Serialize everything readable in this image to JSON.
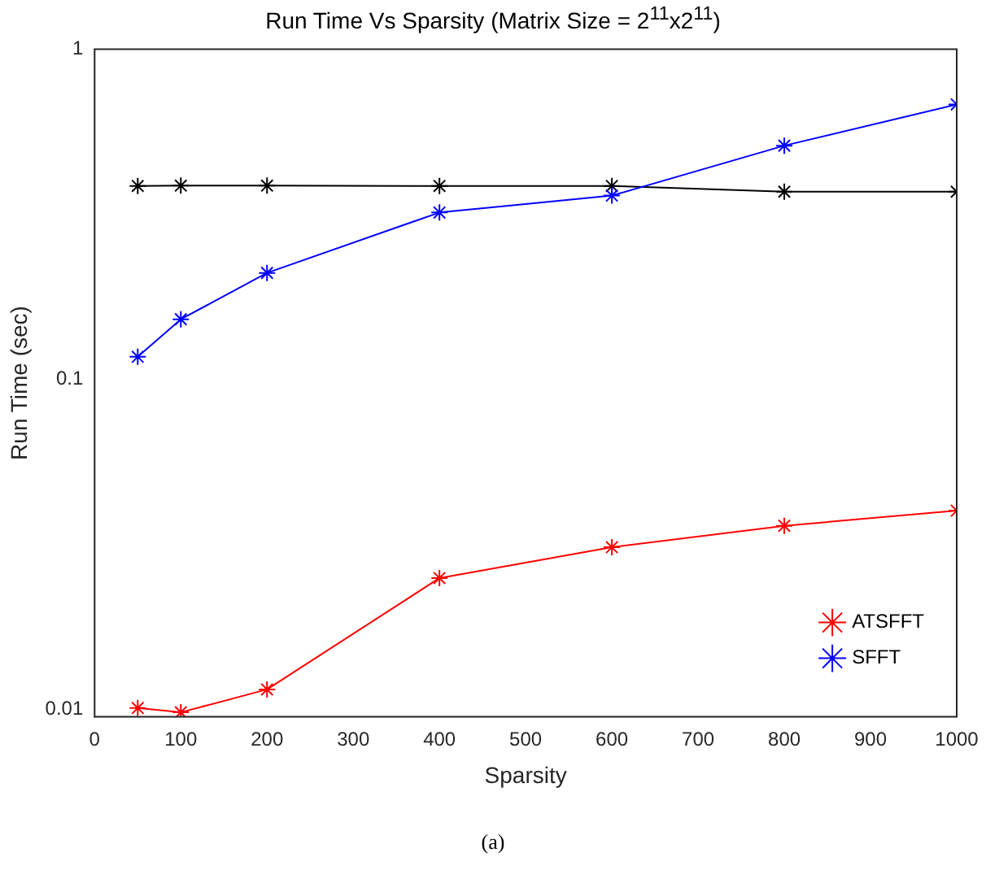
{
  "chart_data": {
    "type": "line",
    "title": "Run Time Vs Sparsity (Matrix Size = 2$^{11}$x2$^{11}$)",
    "xlabel": "Sparsity",
    "ylabel": "Run Time (sec)",
    "x": [
      50,
      100,
      200,
      400,
      600,
      800,
      1000
    ],
    "series": [
      {
        "name": "ATSFFT",
        "color": "#ff0000",
        "values": [
          0.0101,
          0.0098,
          0.0115,
          0.025,
          0.031,
          0.036,
          0.04
        ]
      },
      {
        "name": "SFFT",
        "color": "#0000ff",
        "values": [
          0.117,
          0.152,
          0.21,
          0.32,
          0.36,
          0.51,
          0.68
        ]
      },
      {
        "color": "#000000",
        "values": [
          0.385,
          0.386,
          0.386,
          0.385,
          0.385,
          0.37,
          0.37
        ]
      }
    ],
    "xlim": [
      0,
      1000
    ],
    "xticks": [
      0,
      100,
      200,
      300,
      400,
      500,
      600,
      700,
      800,
      900,
      1000
    ],
    "ylim": [
      0.0095,
      1
    ],
    "yticks": [
      0.01,
      0.1,
      1
    ],
    "log": "y",
    "grid": false,
    "legend": "bottom right",
    "marker": "cross",
    "line_style": "solid",
    "annotations": [
      "(a)"
    ]
  }
}
